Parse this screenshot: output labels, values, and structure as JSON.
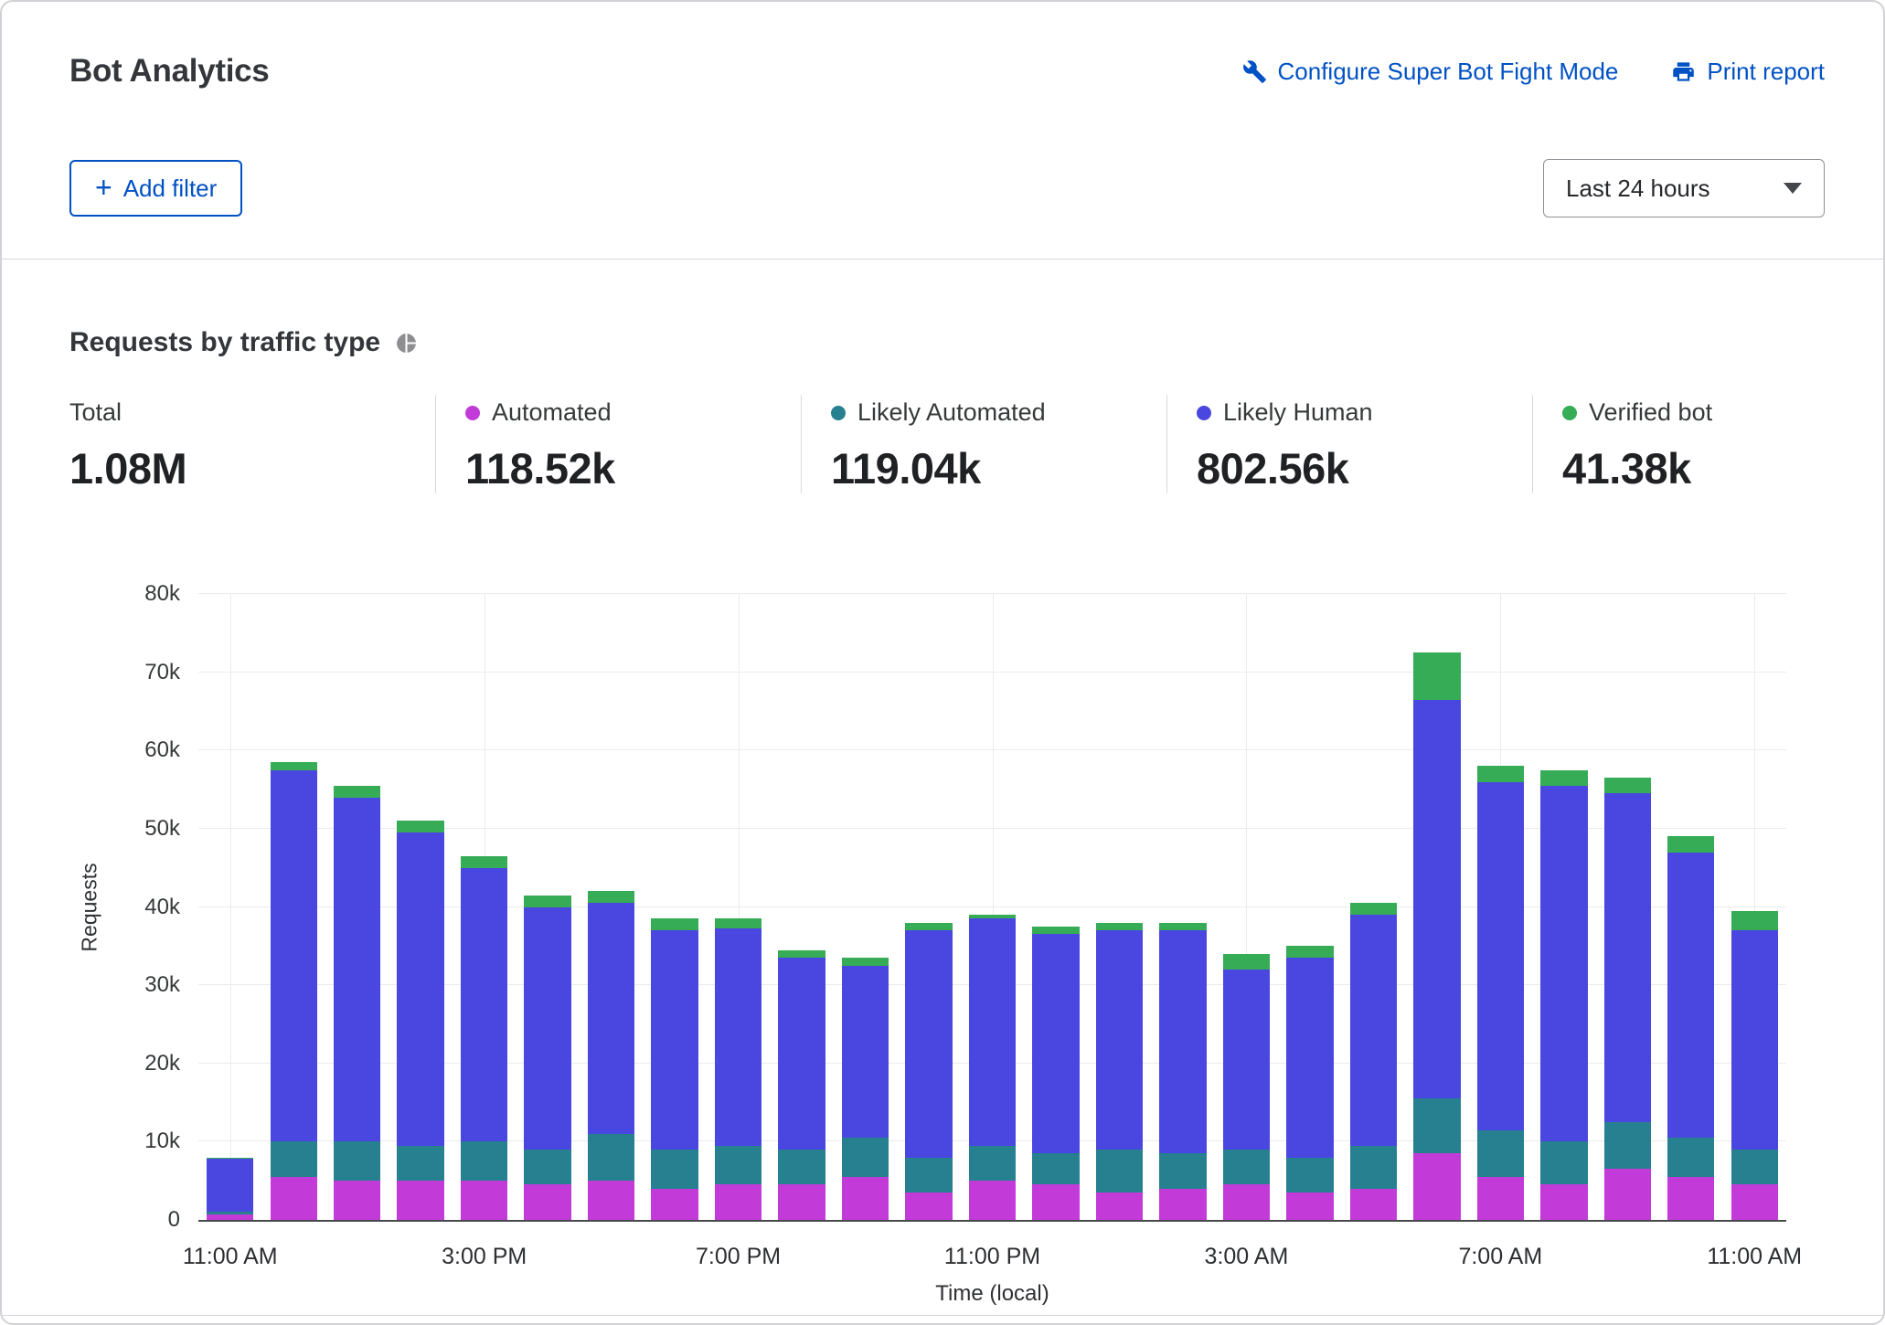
{
  "header": {
    "title": "Bot Analytics",
    "configure_link": "Configure Super Bot Fight Mode",
    "print_link": "Print report"
  },
  "filters": {
    "add_filter_label": "Add filter",
    "plus": "+",
    "time_range_value": "Last 24 hours"
  },
  "section": {
    "title": "Requests by traffic type"
  },
  "stats": [
    {
      "label": "Total",
      "value": "1.08M"
    },
    {
      "label": "Automated",
      "value": "118.52k",
      "color": "#C23BD9"
    },
    {
      "label": "Likely Automated",
      "value": "119.04k",
      "color": "#26808F"
    },
    {
      "label": "Likely Human",
      "value": "802.56k",
      "color": "#4A47E0"
    },
    {
      "label": "Verified bot",
      "value": "41.38k",
      "color": "#35AC55"
    }
  ],
  "chart_data": {
    "type": "bar",
    "stacked": true,
    "title": "Requests by traffic type",
    "xlabel": "Time (local)",
    "ylabel": "Requests",
    "ylim": [
      0,
      80000
    ],
    "grid": true,
    "y_ticks": [
      "0",
      "10k",
      "20k",
      "30k",
      "40k",
      "50k",
      "60k",
      "70k",
      "80k"
    ],
    "x": [
      "11:00 AM",
      "12:00 PM",
      "1:00 PM",
      "2:00 PM",
      "3:00 PM",
      "4:00 PM",
      "5:00 PM",
      "6:00 PM",
      "7:00 PM",
      "8:00 PM",
      "9:00 PM",
      "10:00 PM",
      "11:00 PM",
      "12:00 AM",
      "1:00 AM",
      "2:00 AM",
      "3:00 AM",
      "4:00 AM",
      "5:00 AM",
      "6:00 AM",
      "7:00 AM",
      "8:00 AM",
      "9:00 AM",
      "10:00 AM",
      "11:00 AM"
    ],
    "x_tick_indices": [
      0,
      4,
      8,
      12,
      16,
      20,
      24
    ],
    "x_tick_labels": [
      "11:00 AM",
      "3:00 PM",
      "7:00 PM",
      "11:00 PM",
      "3:00 AM",
      "7:00 AM",
      "11:00 AM"
    ],
    "series": [
      {
        "name": "Automated",
        "color": "#C23BD9",
        "values": [
          700,
          5500,
          5000,
          5000,
          5000,
          4500,
          5000,
          4000,
          4500,
          4500,
          5500,
          3500,
          5000,
          4500,
          3500,
          4000,
          4500,
          3500,
          4000,
          8500,
          5500,
          4500,
          6500,
          5500,
          4500
        ]
      },
      {
        "name": "Likely Automated",
        "color": "#26808F",
        "values": [
          400,
          4500,
          5000,
          4500,
          5000,
          4500,
          6000,
          5000,
          5000,
          4500,
          5000,
          4500,
          4500,
          4000,
          5500,
          4500,
          4500,
          4500,
          5500,
          7000,
          6000,
          5500,
          6000,
          5000,
          4500
        ]
      },
      {
        "name": "Likely Human",
        "color": "#4A47E0",
        "values": [
          6700,
          47500,
          44000,
          40000,
          35000,
          31000,
          29500,
          28000,
          27800,
          24500,
          22000,
          29000,
          29000,
          28000,
          28000,
          28500,
          23000,
          25500,
          29500,
          51000,
          44500,
          45500,
          42000,
          36500,
          28000
        ]
      },
      {
        "name": "Verified bot",
        "color": "#35AC55",
        "values": [
          200,
          1000,
          1500,
          1500,
          1500,
          1500,
          1500,
          1500,
          1200,
          1000,
          1000,
          1000,
          500,
          1000,
          1000,
          1000,
          2000,
          1500,
          1500,
          6000,
          2000,
          2000,
          2000,
          2000,
          2500
        ]
      }
    ]
  }
}
